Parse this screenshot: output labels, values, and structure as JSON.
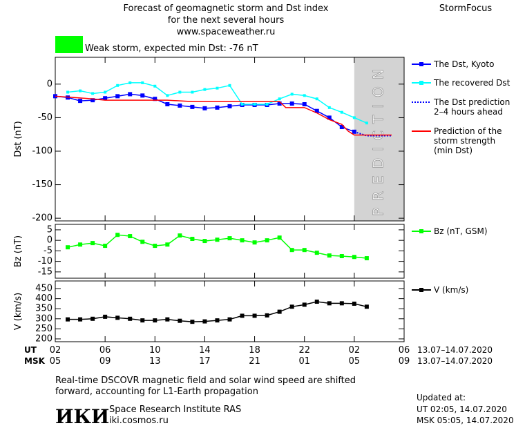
{
  "header": {
    "title_lines": [
      "Forecast of geomagnetic storm and Dst index",
      "for the next several hours",
      "www.spaceweather.ru"
    ],
    "brand": "StormFocus",
    "status": "Weak storm, expected min Dst: -76 nT",
    "status_color": "#00ff00"
  },
  "chart_data": [
    {
      "type": "line",
      "ylabel": "Dst (nT)",
      "xlim": [
        0,
        28
      ],
      "ylim": [
        -204,
        40
      ],
      "yticks": [
        0,
        -50,
        -100,
        -150,
        -200
      ],
      "prediction_zone": [
        24,
        28
      ],
      "prediction_label": "PREDICTION",
      "series": [
        {
          "name": "The Dst, Kyoto",
          "color": "#0000ff",
          "marker": "square",
          "dash": false,
          "x": [
            0,
            1,
            2,
            3,
            4,
            5,
            6,
            7,
            8,
            9,
            10,
            11,
            12,
            13,
            14,
            15,
            16,
            17,
            18,
            19,
            20,
            21,
            22,
            23,
            24
          ],
          "values": [
            -18,
            -20,
            -25,
            -24,
            -21,
            -18,
            -15,
            -17,
            -22,
            -30,
            -32,
            -34,
            -36,
            -35,
            -33,
            -31,
            -31,
            -31,
            -29,
            -29,
            -30,
            -40,
            -50,
            -64,
            -71
          ]
        },
        {
          "name": "The recovered Dst",
          "color": "#00ffff",
          "marker": "small",
          "dash": false,
          "x": [
            1,
            2,
            3,
            4,
            5,
            6,
            7,
            8,
            9,
            10,
            11,
            12,
            13,
            14,
            15,
            16,
            17,
            18,
            19,
            20,
            21,
            22,
            23,
            24,
            25
          ],
          "values": [
            -12,
            -10,
            -14,
            -12,
            -2,
            2,
            2,
            -3,
            -17,
            -12,
            -12,
            -8,
            -6,
            -2,
            -30,
            -30,
            -30,
            -22,
            -15,
            -17,
            -22,
            -35,
            -42,
            -50,
            -58
          ]
        },
        {
          "name": "The Dst prediction\n2–4 hours ahead",
          "color": "#0000ff",
          "marker": "none",
          "dash": true,
          "x": [
            24,
            25,
            27
          ],
          "values": [
            -71,
            -77,
            -77
          ]
        },
        {
          "name": "Prediction of the\nstorm strength\n(min Dst)",
          "color": "#ff0000",
          "marker": "none",
          "dash": false,
          "x": [
            0,
            3,
            4,
            9,
            11,
            13,
            18,
            18.5,
            20,
            21,
            22,
            23,
            23.5,
            24,
            27
          ],
          "values": [
            -18,
            -22,
            -24,
            -24,
            -26,
            -26,
            -26,
            -35,
            -35,
            -43,
            -53,
            -60,
            -70,
            -76,
            -76
          ]
        }
      ]
    },
    {
      "type": "line",
      "ylabel": "Bz (nT)",
      "xlim": [
        0,
        28
      ],
      "ylim": [
        -18,
        7.6
      ],
      "yticks": [
        5,
        0,
        -5,
        -10,
        -15
      ],
      "series": [
        {
          "name": "Bz (nT, GSM)",
          "color": "#00ff00",
          "marker": "square",
          "dash": false,
          "x": [
            1,
            2,
            3,
            4,
            5,
            6,
            7,
            8,
            9,
            10,
            11,
            12,
            13,
            14,
            15,
            16,
            17,
            18,
            19,
            20,
            21,
            22,
            23,
            24,
            25
          ],
          "values": [
            -3.3,
            -2,
            -1.3,
            -2.6,
            2.6,
            2,
            -0.7,
            -2.6,
            -2,
            2.3,
            0.7,
            -0.3,
            0.3,
            1,
            0,
            -1,
            0,
            1.3,
            -4.6,
            -4.6,
            -5.9,
            -7.2,
            -7.5,
            -7.9,
            -8.5
          ]
        }
      ]
    },
    {
      "type": "line",
      "ylabel": "V (km/s)",
      "xlim": [
        0,
        28
      ],
      "ylim": [
        186,
        488
      ],
      "yticks": [
        450,
        400,
        350,
        300,
        250,
        200
      ],
      "xlabel": "UT",
      "xlabel_msk": "MSK",
      "date_range": "13.07–14.07.2020",
      "xticks": [
        {
          "value": 0,
          "label": "02"
        },
        {
          "value": 4,
          "label": "06"
        },
        {
          "value": 8,
          "label": "10"
        },
        {
          "value": 12,
          "label": "14"
        },
        {
          "value": 16,
          "label": "18"
        },
        {
          "value": 20,
          "label": "22"
        },
        {
          "value": 24,
          "label": "02"
        },
        {
          "value": 28,
          "label": "06"
        }
      ],
      "xticks_msk": [
        {
          "value": 0,
          "label": "05"
        },
        {
          "value": 4,
          "label": "09"
        },
        {
          "value": 8,
          "label": "13"
        },
        {
          "value": 12,
          "label": "17"
        },
        {
          "value": 16,
          "label": "21"
        },
        {
          "value": 20,
          "label": "01"
        },
        {
          "value": 24,
          "label": "05"
        },
        {
          "value": 28,
          "label": "09"
        }
      ],
      "series": [
        {
          "name": "V (km/s)",
          "color": "#000000",
          "marker": "square",
          "dash": false,
          "x": [
            1,
            2,
            3,
            4,
            5,
            6,
            7,
            8,
            9,
            10,
            11,
            12,
            13,
            14,
            15,
            16,
            17,
            18,
            19,
            20,
            21,
            22,
            23,
            24,
            25
          ],
          "values": [
            297,
            297,
            300,
            310,
            305,
            300,
            292,
            292,
            297,
            290,
            285,
            287,
            292,
            297,
            315,
            315,
            317,
            335,
            360,
            370,
            385,
            377,
            377,
            375,
            360
          ]
        }
      ]
    }
  ],
  "footer": {
    "note_lines": [
      "Real-time DSCOVR magnetic field and solar wind speed are shifted",
      "forward, accounting for L1-Earth propagation"
    ],
    "logo": "ИКИ",
    "institute": "Space Research Institute RAS",
    "site": "iki.cosmos.ru",
    "updated_label": "Updated at:",
    "updated_ut": "UT   02:05, 14.07.2020",
    "updated_msk": "MSK 05:05, 14.07.2020"
  }
}
